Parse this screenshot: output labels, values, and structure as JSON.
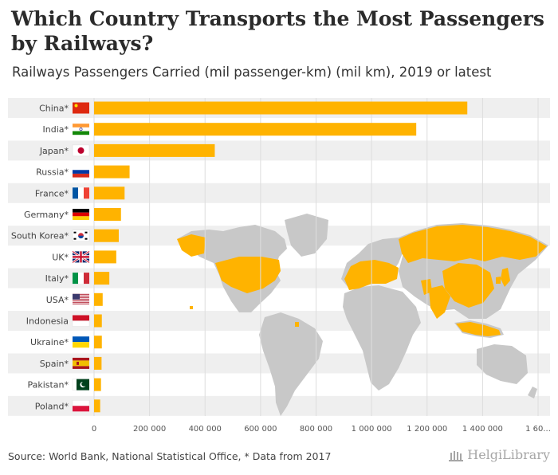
{
  "title": "Which Country Transports the Most Passengers by Railways?",
  "subtitle": "Railways Passengers Carried (mil passenger-km) (mil km), 2019 or latest",
  "source": "Source: World Bank, National Statistical Office, * Data from 2017",
  "logo": "HelgiLibrary",
  "colors": {
    "bar": "#FFB300",
    "band": "#efefef",
    "map_land": "#c8c8c8",
    "map_highlight": "#FFB300"
  },
  "chart_data": {
    "type": "bar",
    "orientation": "horizontal",
    "categories": [
      "China*",
      "India*",
      "Japan*",
      "Russia*",
      "France*",
      "Germany*",
      "South Korea*",
      "UK*",
      "Italy*",
      "USA*",
      "Indonesia",
      "Ukraine*",
      "Spain*",
      "Pakistan*",
      "Poland*"
    ],
    "flags": [
      "flag-china-icon",
      "flag-india-icon",
      "flag-japan-icon",
      "flag-russia-icon",
      "flag-france-icon",
      "flag-germany-icon",
      "flag-south-korea-icon",
      "flag-uk-icon",
      "flag-italy-icon",
      "flag-usa-icon",
      "flag-indonesia-icon",
      "flag-ukraine-icon",
      "flag-spain-icon",
      "flag-pakistan-icon",
      "flag-poland-icon"
    ],
    "values": [
      1345000,
      1161000,
      435000,
      128000,
      110000,
      97000,
      89000,
      80000,
      55000,
      31000,
      28000,
      28000,
      27000,
      25000,
      22000
    ],
    "xlim": [
      0,
      1600000
    ],
    "xticks": [
      "0",
      "200 000",
      "400 000",
      "600 000",
      "800 000",
      "1 000 000",
      "1 200 000",
      "1 400 000",
      "1 60..."
    ],
    "grid": true,
    "background": "world map with the listed countries highlighted"
  }
}
